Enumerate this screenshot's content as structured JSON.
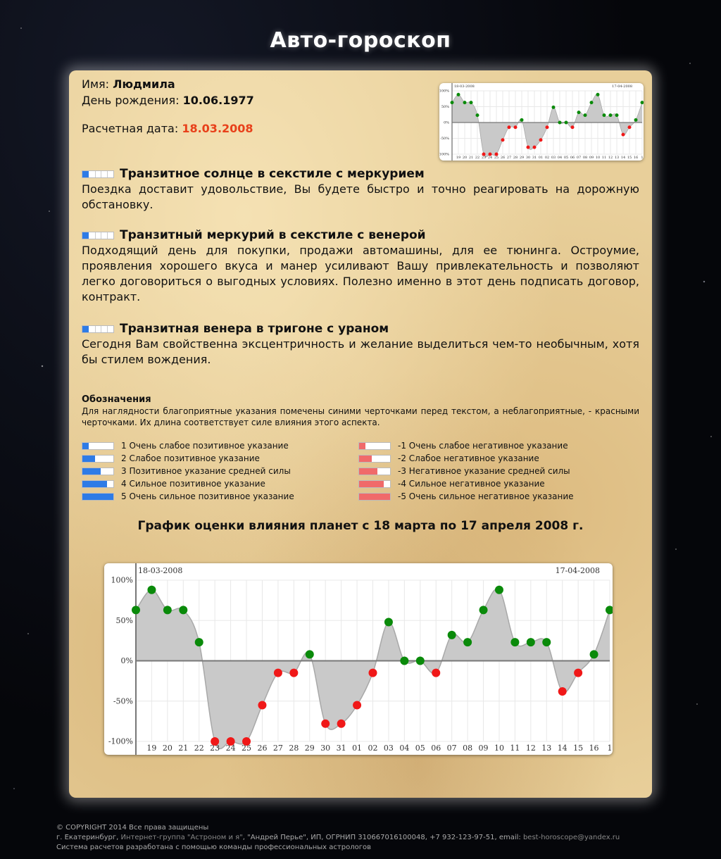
{
  "site": {
    "title": "Авто-гороскоп"
  },
  "person": {
    "name_label": "Имя:",
    "name": "Людмила",
    "birth_label": "День рождения:",
    "birth_date": "10.06.1977",
    "calc_label": "Расчетная дата:",
    "calc_date": "18.03.2008"
  },
  "colors": {
    "positive": "#2e7be6",
    "negative": "#f06a6a",
    "calc_date": "#e8401a",
    "dot_pos": "#0a8a0a",
    "dot_neg": "#f01818"
  },
  "aspects": [
    {
      "strength": 1,
      "title": "Транзитное солнце в секстиле с меркурием",
      "text": "Поездка доставит удовольствие, Вы будете быстро и точно реагировать на дорожную обстановку."
    },
    {
      "strength": 1,
      "title": "Транзитный меркурий в секстиле с венерой",
      "text": "Подходящий день для покупки, продажи автомашины, для ее тюнинга. Остроумие, проявления хорошего вкуса и манер усиливают Вашу привлекательность и позволяют легко договориться о выгодных условиях. Полезно именно в этот день подписать договор, контракт."
    },
    {
      "strength": 1,
      "title": "Транзитная венера в тригоне с ураном",
      "text": "Сегодня Вам свойственна эксцентричность и желание выделиться чем-то необычным, хотя бы стилем вождения."
    }
  ],
  "legend": {
    "title": "Обозначения",
    "description": "Для наглядности благоприятные указания помечены синими черточками перед текстом, а неблагоприятные, - красными черточками. Их длина соответствует силе влияния этого аспекта.",
    "positive": [
      {
        "level": 1,
        "label": "1 Очень слабое позитивное указание"
      },
      {
        "level": 2,
        "label": "2 Слабое позитивное указание"
      },
      {
        "level": 3,
        "label": "3 Позитивное указание средней силы"
      },
      {
        "level": 4,
        "label": "4 Сильное позитивное указание"
      },
      {
        "level": 5,
        "label": "5 Очень сильное позитивное указание"
      }
    ],
    "negative": [
      {
        "level": 1,
        "label": "-1 Очень слабое негативное указание"
      },
      {
        "level": 2,
        "label": "-2 Слабое негативное указание"
      },
      {
        "level": 3,
        "label": "-3 Негативное указание средней силы"
      },
      {
        "level": 4,
        "label": "-4 Сильное негативное указание"
      },
      {
        "level": 5,
        "label": "-5 Очень сильное негативное указание"
      }
    ]
  },
  "graph": {
    "caption": "График оценки влияния планет с 18 марта по 17 апреля 2008 г."
  },
  "chart_data": {
    "type": "area",
    "date_start": "18-03-2008",
    "date_end": "17-04-2008",
    "x": [
      "",
      "19",
      "20",
      "21",
      "22",
      "23",
      "24",
      "25",
      "26",
      "27",
      "28",
      "29",
      "30",
      "31",
      "01",
      "02",
      "03",
      "04",
      "05",
      "06",
      "07",
      "08",
      "09",
      "10",
      "11",
      "12",
      "13",
      "14",
      "15",
      "16",
      "1"
    ],
    "values": [
      63,
      88,
      63,
      63,
      23,
      -100,
      -100,
      -100,
      -55,
      -15,
      -15,
      8,
      -78,
      -78,
      -55,
      -15,
      48,
      0,
      0,
      -15,
      32,
      23,
      63,
      88,
      23,
      23,
      23,
      -38,
      -15,
      8,
      63
    ],
    "ylim": [
      -100,
      100
    ],
    "yticks": [
      "100%",
      "50%",
      "0%",
      "-50%",
      "-100%"
    ],
    "grid": true
  },
  "footer": {
    "line1": "© COPYRIGHT 2014 Все права защищены",
    "line2_a": "г. Екатеринбург, ",
    "line2_hl": "Интернет-группа \"Астроном и я\"",
    "line2_b": ", \"Андрей Перье\", ИП, ОГРНИП 310667016100048, +7 932-123-97-51, email: ",
    "line2_email": "best-horoscope@yandex.ru",
    "line3": "Система расчетов разработана с помощью команды профессиональных астрологов"
  }
}
